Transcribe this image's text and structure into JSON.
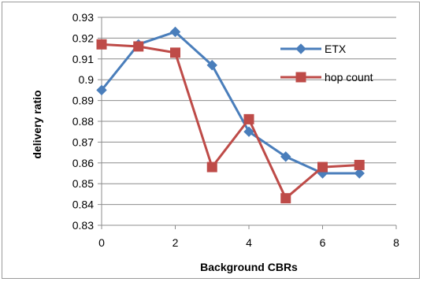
{
  "chart_data": {
    "type": "line",
    "title": "",
    "xlabel": "Background CBRs",
    "ylabel": "delivery ratio",
    "xlim": [
      0,
      8
    ],
    "ylim": [
      0.83,
      0.93
    ],
    "xticks": [
      "0",
      "2",
      "4",
      "6",
      "8"
    ],
    "yticks": [
      "0.83",
      "0.84",
      "0.85",
      "0.86",
      "0.87",
      "0.88",
      "0.89",
      "0.9",
      "0.91",
      "0.92",
      "0.93"
    ],
    "grid": true,
    "legend_position": "right",
    "series": [
      {
        "name": "ETX",
        "color": "#4a7ebb",
        "marker": "diamond",
        "x": [
          0,
          1,
          2,
          3,
          4,
          5,
          6,
          7
        ],
        "y": [
          0.895,
          0.917,
          0.923,
          0.907,
          0.875,
          0.863,
          0.855,
          0.855
        ]
      },
      {
        "name": "hop count",
        "color": "#be4b48",
        "marker": "square",
        "x": [
          0,
          1,
          2,
          3,
          4,
          5,
          6,
          7
        ],
        "y": [
          0.917,
          0.916,
          0.913,
          0.858,
          0.881,
          0.843,
          0.858,
          0.859
        ]
      }
    ]
  }
}
